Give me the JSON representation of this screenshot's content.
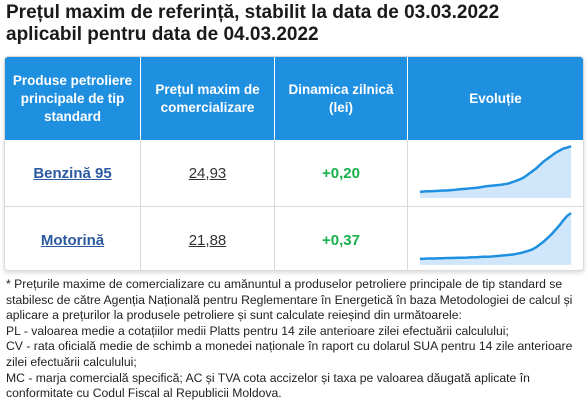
{
  "title_line1": "Prețul maxim de referință, stabilit la data de 03.03.2022",
  "title_line2": "aplicabil pentru data de 04.03.2022",
  "table": {
    "headers": [
      "Produse petroliere principale de tip standard",
      "Prețul maxim de comercializare",
      "Dinamica zilnică (lei)",
      "Evoluție"
    ],
    "rows": [
      {
        "product": "Benzină 95",
        "price": "24,93",
        "delta": "+0,20",
        "trend": [
          18.5,
          18.55,
          18.6,
          18.6,
          18.62,
          18.65,
          18.7,
          18.7,
          18.75,
          18.8,
          18.85,
          18.9,
          18.95,
          19.0,
          19.05,
          19.1,
          19.2,
          19.3,
          19.35,
          19.4,
          19.45,
          19.5,
          19.6,
          19.7,
          19.9,
          20.1,
          20.3,
          20.6,
          21.0,
          21.4,
          21.8,
          22.3,
          22.8,
          23.2,
          23.6,
          24.0,
          24.3,
          24.6,
          24.73,
          24.93
        ]
      },
      {
        "product": "Motorină",
        "price": "21,88",
        "delta": "+0,37",
        "trend": [
          15.6,
          15.62,
          15.65,
          15.65,
          15.66,
          15.68,
          15.7,
          15.72,
          15.72,
          15.73,
          15.75,
          15.77,
          15.78,
          15.8,
          15.82,
          15.85,
          15.88,
          15.9,
          15.92,
          15.95,
          16.0,
          16.05,
          16.1,
          16.15,
          16.2,
          16.3,
          16.4,
          16.55,
          16.7,
          16.9,
          17.2,
          17.6,
          18.0,
          18.5,
          19.0,
          19.6,
          20.2,
          20.9,
          21.51,
          21.88
        ]
      }
    ]
  },
  "notes": [
    "* Prețurile maxime de comercializare cu amănuntul a produselor petroliere principale de tip standard se stabilesc de către Agenția Națională pentru Reglementare în Energetică în baza Metodologiei de calcul și aplicare a prețurilor la produsele petroliere și sunt calculate reieșind din următoarele:",
    "PL - valoarea medie a cotațiilor medii Platts pentru 14 zile anterioare zilei efectuării calculului;",
    "CV - rata oficială medie de schimb a monedei naționale în raport cu dolarul SUA pentru 14 zile anterioare zilei efectuării calculului;",
    "MC - marja comercială specifică; AC și TVA cota accizelor și taxa pe valoarea dăugată aplicate în conformitate cu Codul Fiscal al Republicii Moldova."
  ],
  "colors": {
    "header_bg": "#1f8fe0",
    "link": "#2c5aa0",
    "delta_positive": "#17b04a",
    "spark_line": "#1f8fe0",
    "spark_fill": "#cfe6fb"
  }
}
